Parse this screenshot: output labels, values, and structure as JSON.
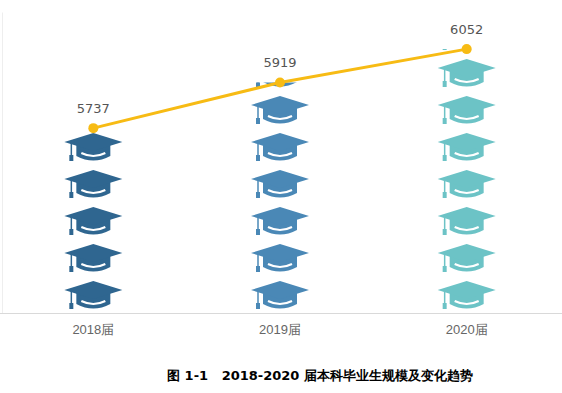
{
  "chart_data": {
    "type": "bar",
    "title": "图 1-1   2018-2020 届本科毕业生规模及变化趋势",
    "categories": [
      "2018届",
      "2019届",
      "2020届"
    ],
    "series": [
      {
        "type": "bar",
        "colors": [
          "#2f6690",
          "#4a88b6",
          "#6cc3c6"
        ],
        "values": [
          5737,
          5919,
          6052
        ]
      },
      {
        "type": "line",
        "color": "#f7bb14",
        "marker": "circle",
        "values": [
          5737,
          5919,
          6052
        ]
      }
    ],
    "ylim": [
      5000,
      6200
    ],
    "yticks": [],
    "tick_labels": "x",
    "data_labels": true,
    "grid": false
  }
}
